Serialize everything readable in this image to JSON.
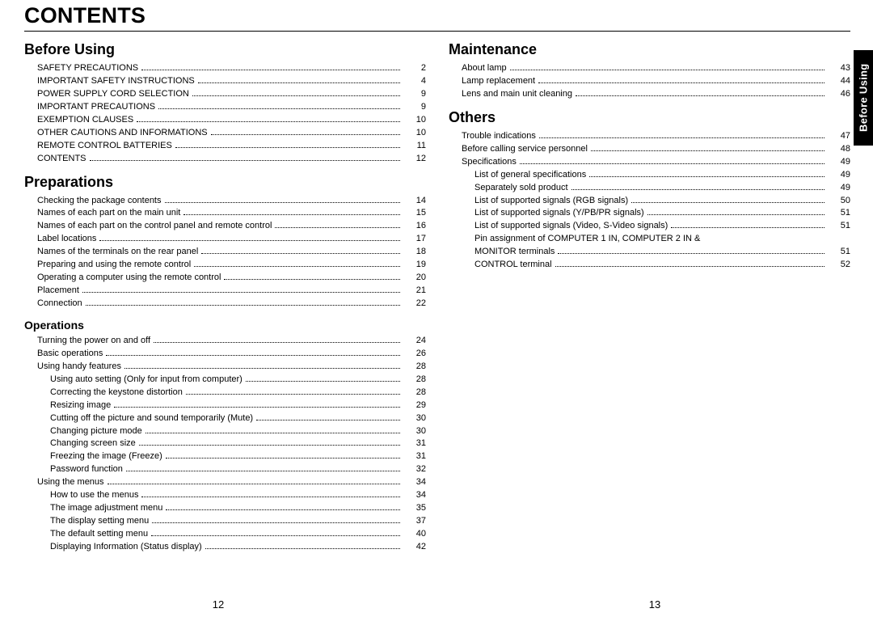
{
  "title": "CONTENTS",
  "side_tab": "Before Using",
  "page_left": "12",
  "page_right": "13",
  "left_column": [
    {
      "type": "section",
      "heading": "Before Using",
      "items": [
        {
          "label": "SAFETY PRECAUTIONS",
          "page": "2",
          "indent": 1
        },
        {
          "label": "IMPORTANT SAFETY INSTRUCTIONS",
          "page": "4",
          "indent": 1
        },
        {
          "label": "POWER SUPPLY CORD SELECTION",
          "page": "9",
          "indent": 1
        },
        {
          "label": "IMPORTANT PRECAUTIONS",
          "page": "9",
          "indent": 1
        },
        {
          "label": "EXEMPTION CLAUSES",
          "page": "10",
          "indent": 1
        },
        {
          "label": "OTHER CAUTIONS AND INFORMATIONS",
          "page": "10",
          "indent": 1
        },
        {
          "label": "REMOTE CONTROL BATTERIES",
          "page": "11",
          "indent": 1
        },
        {
          "label": "CONTENTS",
          "page": "12",
          "indent": 1
        }
      ]
    },
    {
      "type": "section",
      "heading": "Preparations",
      "items": [
        {
          "label": "Checking the package contents",
          "page": "14",
          "indent": 1
        },
        {
          "label": "Names of each part on the main unit",
          "page": "15",
          "indent": 1
        },
        {
          "label": "Names of each part on the control panel and remote control",
          "page": "16",
          "indent": 1
        },
        {
          "label": "Label locations",
          "page": "17",
          "indent": 1
        },
        {
          "label": "Names of the terminals on the rear panel",
          "page": "18",
          "indent": 1
        },
        {
          "label": "Preparing and using the remote control",
          "page": "19",
          "indent": 1
        },
        {
          "label": "Operating a computer using the remote control",
          "page": "20",
          "indent": 1
        },
        {
          "label": "Placement",
          "page": "21",
          "indent": 1
        },
        {
          "label": "Connection",
          "page": "22",
          "indent": 1
        }
      ]
    },
    {
      "type": "subsection",
      "heading": "Operations",
      "items": [
        {
          "label": "Turning the power on and off",
          "page": "24",
          "indent": 1
        },
        {
          "label": "Basic operations",
          "page": "26",
          "indent": 1
        },
        {
          "label": "Using handy features",
          "page": "28",
          "indent": 1
        },
        {
          "label": "Using auto setting (Only for input from computer)",
          "page": "28",
          "indent": 2
        },
        {
          "label": "Correcting the keystone distortion",
          "page": "28",
          "indent": 2
        },
        {
          "label": "Resizing image",
          "page": "29",
          "indent": 2
        },
        {
          "label": "Cutting off the picture and sound temporarily (Mute)",
          "page": "30",
          "indent": 2
        },
        {
          "label": "Changing picture mode",
          "page": "30",
          "indent": 2
        },
        {
          "label": "Changing screen size",
          "page": "31",
          "indent": 2
        },
        {
          "label": "Freezing the image (Freeze)",
          "page": "31",
          "indent": 2
        },
        {
          "label": "Password function",
          "page": "32",
          "indent": 2
        },
        {
          "label": "Using the menus",
          "page": "34",
          "indent": 1
        },
        {
          "label": "How to use the menus",
          "page": "34",
          "indent": 2
        },
        {
          "label": "The image adjustment menu",
          "page": "35",
          "indent": 2
        },
        {
          "label": "The display setting menu",
          "page": "37",
          "indent": 2
        },
        {
          "label": "The default setting menu",
          "page": "40",
          "indent": 2
        },
        {
          "label": "Displaying Information (Status display)",
          "page": "42",
          "indent": 2
        }
      ]
    }
  ],
  "right_column": [
    {
      "type": "section",
      "heading": "Maintenance",
      "items": [
        {
          "label": "About lamp",
          "page": "43",
          "indent": 1
        },
        {
          "label": "Lamp replacement",
          "page": "44",
          "indent": 1
        },
        {
          "label": "Lens and main unit cleaning",
          "page": "46",
          "indent": 1
        }
      ]
    },
    {
      "type": "section",
      "heading": "Others",
      "items": [
        {
          "label": "Trouble indications",
          "page": "47",
          "indent": 1
        },
        {
          "label": "Before calling service personnel",
          "page": "48",
          "indent": 1
        },
        {
          "label": "Specifications",
          "page": "49",
          "indent": 1
        },
        {
          "label": "List of general specifications",
          "page": "49",
          "indent": 2
        },
        {
          "label": "Separately sold product",
          "page": "49",
          "indent": 2
        },
        {
          "label": "List of supported signals (RGB signals)",
          "page": "50",
          "indent": 2
        },
        {
          "label": "List of supported signals (Y/PB/PR signals)",
          "page": "51",
          "indent": 2
        },
        {
          "label": "List of supported signals (Video, S-Video signals)",
          "page": "51",
          "indent": 2
        },
        {
          "label": "Pin assignment of COMPUTER 1 IN, COMPUTER 2 IN &",
          "page": "",
          "indent": 2,
          "no_page": true
        },
        {
          "label": "MONITOR terminals",
          "page": "51",
          "indent": 2
        },
        {
          "label": "CONTROL terminal",
          "page": "52",
          "indent": 2
        }
      ]
    }
  ]
}
